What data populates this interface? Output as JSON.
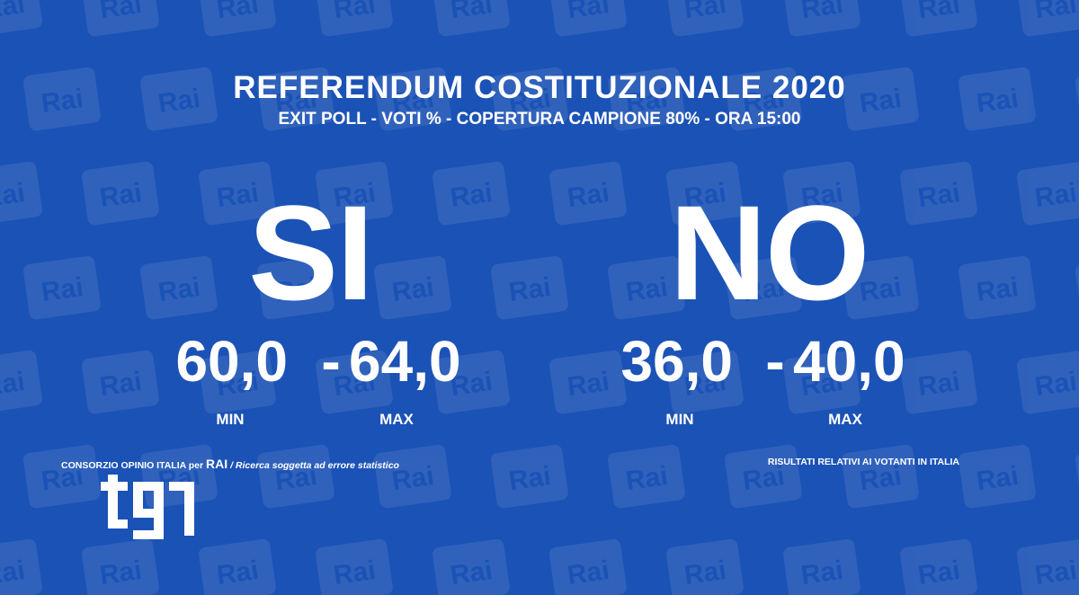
{
  "watermark": "Rai",
  "header": {
    "title": "REFERENDUM COSTITUZIONALE 2020",
    "subtitle": "EXIT POLL - VOTI % - COPERTURA CAMPIONE 80% - ORA 15:00"
  },
  "options": [
    {
      "label": "SI",
      "min": "60,0",
      "separator": "-",
      "max": "64,0",
      "min_label": "MIN",
      "max_label": "MAX"
    },
    {
      "label": "NO",
      "min": "36,0",
      "separator": "-",
      "max": "40,0",
      "min_label": "MIN",
      "max_label": "MAX"
    }
  ],
  "footer": {
    "source": "CONSORZIO OPINIO ITALIA per",
    "brand": "RAI",
    "note": "/ Ricerca soggetta ad errore statistico",
    "right": "RISULTATI RELATIVI AI VOTANTI IN ITALIA"
  }
}
